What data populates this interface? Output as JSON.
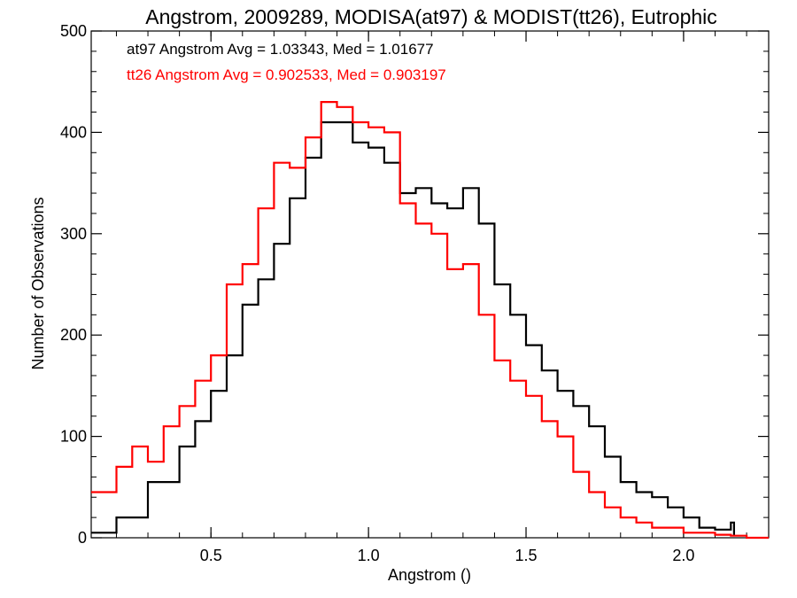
{
  "chart_data": {
    "type": "line",
    "title": "Angstrom, 2009289, MODISA(at97) & MODIST(tt26), Eutrophic",
    "xlabel": "Angstrom ()",
    "ylabel": "Number of Observations",
    "xlim": [
      0.12,
      2.27
    ],
    "ylim": [
      0,
      500
    ],
    "xticks": [
      0.5,
      1.0,
      1.5,
      2.0
    ],
    "xtick_labels": [
      "0.5",
      "1.0",
      "1.5",
      "2.0"
    ],
    "yticks": [
      0,
      100,
      200,
      300,
      400,
      500
    ],
    "ytick_labels": [
      "0",
      "100",
      "200",
      "300",
      "400",
      "500"
    ],
    "grid": false,
    "annotations": [
      {
        "text": "at97 Angstrom Avg = 1.03343, Med = 1.01677",
        "color": "#000000"
      },
      {
        "text": "tt26 Angstrom Avg = 0.902533, Med = 0.903197",
        "color": "#ff0000"
      }
    ],
    "series": [
      {
        "color": "#000000",
        "x": [
          0.12,
          0.2,
          0.3,
          0.4,
          0.45,
          0.5,
          0.55,
          0.6,
          0.65,
          0.7,
          0.75,
          0.8,
          0.85,
          0.9,
          0.95,
          1.0,
          1.05,
          1.1,
          1.15,
          1.2,
          1.25,
          1.3,
          1.35,
          1.4,
          1.45,
          1.5,
          1.55,
          1.6,
          1.65,
          1.7,
          1.75,
          1.8,
          1.85,
          1.9,
          1.95,
          2.0,
          2.05,
          2.1,
          2.15,
          2.16
        ],
        "y": [
          5,
          20,
          55,
          90,
          115,
          145,
          180,
          230,
          255,
          290,
          335,
          375,
          410,
          410,
          390,
          385,
          370,
          340,
          345,
          330,
          325,
          345,
          310,
          250,
          220,
          190,
          165,
          145,
          130,
          110,
          80,
          55,
          45,
          40,
          30,
          20,
          10,
          8,
          15,
          2
        ]
      },
      {
        "color": "#ff0000",
        "x": [
          0.12,
          0.2,
          0.25,
          0.3,
          0.35,
          0.4,
          0.45,
          0.5,
          0.55,
          0.6,
          0.65,
          0.7,
          0.75,
          0.8,
          0.85,
          0.9,
          0.95,
          1.0,
          1.05,
          1.1,
          1.15,
          1.2,
          1.25,
          1.3,
          1.35,
          1.4,
          1.45,
          1.5,
          1.55,
          1.6,
          1.65,
          1.7,
          1.75,
          1.8,
          1.85,
          1.9,
          2.0,
          2.1,
          2.15,
          2.2,
          2.27
        ],
        "y": [
          45,
          70,
          90,
          75,
          110,
          130,
          155,
          180,
          250,
          270,
          325,
          370,
          365,
          395,
          430,
          425,
          410,
          405,
          400,
          330,
          310,
          300,
          265,
          270,
          220,
          175,
          155,
          140,
          115,
          100,
          65,
          45,
          30,
          20,
          15,
          10,
          5,
          3,
          2,
          0,
          0
        ]
      }
    ]
  }
}
